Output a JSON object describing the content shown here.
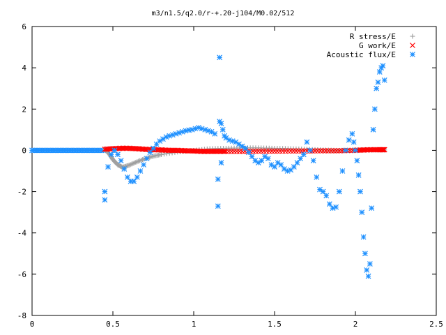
{
  "chart_data": {
    "type": "scatter",
    "title": "m3/n1.5/q2.0/r-+.20-j104/M0.02/512",
    "xlabel": "",
    "ylabel": "",
    "xlim": [
      0,
      2.5
    ],
    "ylim": [
      -8,
      6
    ],
    "x_ticks": [
      "0",
      "0.5",
      "1",
      "1.5",
      "2",
      "2.5"
    ],
    "y_ticks": [
      "-8",
      "-6",
      "-4",
      "-2",
      "0",
      "2",
      "4",
      "6"
    ],
    "grid": false,
    "legend_position": "top-right",
    "series": [
      {
        "name": "R stress/E",
        "marker": "+",
        "color": "#a0a0a0",
        "x": [
          0.45,
          0.48,
          0.5,
          0.53,
          0.56,
          0.6,
          0.65,
          0.7,
          0.75,
          0.8,
          0.9,
          1.0,
          1.1,
          1.2,
          1.3,
          1.4,
          1.5,
          1.6,
          1.7,
          1.8,
          1.9,
          2.0,
          2.1,
          2.18
        ],
        "y": [
          0.05,
          -0.2,
          -0.45,
          -0.7,
          -0.82,
          -0.72,
          -0.55,
          -0.4,
          -0.28,
          -0.2,
          -0.08,
          0.0,
          0.08,
          0.1,
          0.12,
          0.12,
          0.1,
          0.08,
          0.05,
          0.02,
          0.0,
          0.02,
          0.02,
          0.02
        ]
      },
      {
        "name": "G work/E",
        "marker": "x",
        "color": "#ff0000",
        "x": [
          0.45,
          0.5,
          0.55,
          0.6,
          0.65,
          0.7,
          0.75,
          0.8,
          0.85,
          0.9,
          0.95,
          1.0,
          1.05,
          1.1,
          1.15,
          1.2,
          1.3,
          1.4,
          1.5,
          1.6,
          1.7,
          1.8,
          1.9,
          2.0,
          2.05,
          2.1,
          2.15,
          2.18
        ],
        "y": [
          0.05,
          0.08,
          0.1,
          0.1,
          0.08,
          0.05,
          0.03,
          0.02,
          0.0,
          0.0,
          -0.02,
          -0.03,
          -0.05,
          -0.05,
          -0.05,
          -0.05,
          -0.05,
          -0.04,
          -0.04,
          -0.03,
          -0.03,
          -0.02,
          -0.02,
          0.0,
          0.02,
          0.03,
          0.03,
          0.03
        ]
      },
      {
        "name": "Acoustic flux/E",
        "marker": "*",
        "color": "#1e90ff",
        "x": [
          0.45,
          0.45,
          0.47,
          0.49,
          0.51,
          0.53,
          0.55,
          0.57,
          0.59,
          0.61,
          0.63,
          0.65,
          0.67,
          0.69,
          0.71,
          0.73,
          0.75,
          0.77,
          0.79,
          0.81,
          0.83,
          0.85,
          0.87,
          0.89,
          0.91,
          0.93,
          0.95,
          0.97,
          0.99,
          1.01,
          1.03,
          1.05,
          1.07,
          1.09,
          1.11,
          1.13,
          1.15,
          1.15,
          1.16,
          1.16,
          1.17,
          1.17,
          1.18,
          1.19,
          1.2,
          1.22,
          1.24,
          1.26,
          1.28,
          1.3,
          1.32,
          1.34,
          1.36,
          1.38,
          1.4,
          1.42,
          1.44,
          1.46,
          1.48,
          1.5,
          1.52,
          1.54,
          1.56,
          1.58,
          1.6,
          1.62,
          1.64,
          1.66,
          1.68,
          1.7,
          1.72,
          1.74,
          1.76,
          1.78,
          1.8,
          1.82,
          1.84,
          1.86,
          1.88,
          1.9,
          1.92,
          1.94,
          1.96,
          1.98,
          1.99,
          2.0,
          2.01,
          2.02,
          2.03,
          2.04,
          2.05,
          2.06,
          2.07,
          2.08,
          2.09,
          2.1,
          2.11,
          2.12,
          2.13,
          2.14,
          2.15,
          2.16,
          2.17,
          2.18
        ],
        "y": [
          -2.4,
          -2.0,
          -0.8,
          -0.2,
          0.0,
          -0.2,
          -0.5,
          -0.9,
          -1.3,
          -1.5,
          -1.5,
          -1.3,
          -1.0,
          -0.7,
          -0.4,
          -0.1,
          0.1,
          0.3,
          0.45,
          0.55,
          0.65,
          0.7,
          0.75,
          0.8,
          0.85,
          0.9,
          0.95,
          0.98,
          1.0,
          1.05,
          1.1,
          1.05,
          1.0,
          0.95,
          0.9,
          0.8,
          -2.7,
          -1.4,
          1.4,
          4.5,
          1.3,
          -0.6,
          1.0,
          0.7,
          0.6,
          0.5,
          0.45,
          0.4,
          0.3,
          0.2,
          0.1,
          -0.1,
          -0.3,
          -0.5,
          -0.6,
          -0.5,
          -0.3,
          -0.4,
          -0.7,
          -0.8,
          -0.6,
          -0.7,
          -0.9,
          -1.0,
          -0.95,
          -0.8,
          -0.6,
          -0.4,
          -0.2,
          0.4,
          0.0,
          -0.5,
          -1.3,
          -1.9,
          -2.0,
          -2.2,
          -2.6,
          -2.8,
          -2.75,
          -2.0,
          -1.0,
          0.0,
          0.5,
          0.8,
          0.4,
          0.0,
          -0.5,
          -1.2,
          -2.0,
          -3.0,
          -4.2,
          -5.0,
          -5.8,
          -6.1,
          -5.5,
          -2.8,
          1.0,
          2.0,
          3.0,
          3.3,
          3.8,
          4.0,
          4.1,
          3.4
        ]
      }
    ]
  }
}
